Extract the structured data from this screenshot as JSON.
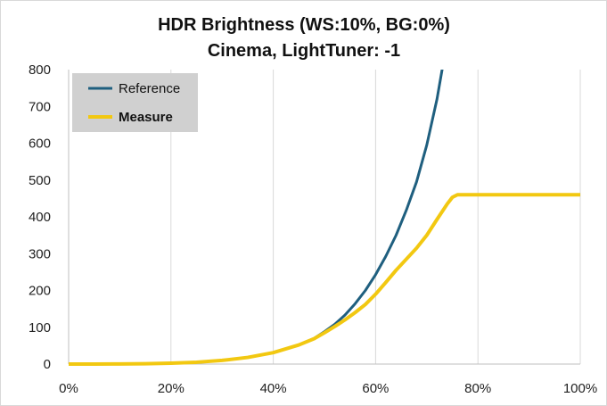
{
  "chart_data": {
    "type": "line",
    "title": [
      "HDR Brightness (WS:10%, BG:0%)",
      "Cinema, LightTuner: -1"
    ],
    "xlabel": "",
    "ylabel": "",
    "xlim": [
      0,
      100
    ],
    "ylim": [
      0,
      800
    ],
    "x_ticks": [
      0,
      20,
      40,
      60,
      80,
      100
    ],
    "x_tick_labels": [
      "0%",
      "20%",
      "40%",
      "60%",
      "80%",
      "100%"
    ],
    "y_ticks": [
      0,
      100,
      200,
      300,
      400,
      500,
      600,
      700,
      800
    ],
    "y_tick_labels": [
      "0",
      "100",
      "200",
      "300",
      "400",
      "500",
      "600",
      "700",
      "800"
    ],
    "grid": {
      "vertical": true,
      "horizontal": false
    },
    "legend": {
      "placement": "top-left",
      "background": "#d0d0d0"
    },
    "series": [
      {
        "name": "Reference",
        "color": "#1f5f7f",
        "bold_label": false,
        "x": [
          0,
          5,
          10,
          15,
          20,
          25,
          30,
          35,
          40,
          45,
          48,
          50,
          52,
          54,
          56,
          58,
          60,
          62,
          64,
          66,
          68,
          70,
          72,
          73
        ],
        "y": [
          0,
          0.1,
          0.3,
          1,
          2.5,
          5,
          10,
          18,
          31,
          52,
          70,
          88,
          108,
          133,
          164,
          200,
          243,
          293,
          350,
          418,
          495,
          595,
          720,
          800
        ]
      },
      {
        "name": "Measure",
        "color": "#f2c811",
        "bold_label": true,
        "x": [
          0,
          5,
          10,
          15,
          20,
          25,
          30,
          35,
          40,
          45,
          48,
          50,
          52,
          54,
          56,
          58,
          60,
          62,
          64,
          66,
          68,
          70,
          72,
          74,
          75,
          76,
          80,
          90,
          100
        ],
        "y": [
          0,
          0.1,
          0.3,
          1,
          2.5,
          5,
          10,
          18,
          31,
          52,
          69,
          85,
          102,
          120,
          140,
          162,
          190,
          222,
          255,
          285,
          315,
          350,
          393,
          435,
          453,
          460,
          460,
          460,
          460
        ]
      }
    ]
  }
}
